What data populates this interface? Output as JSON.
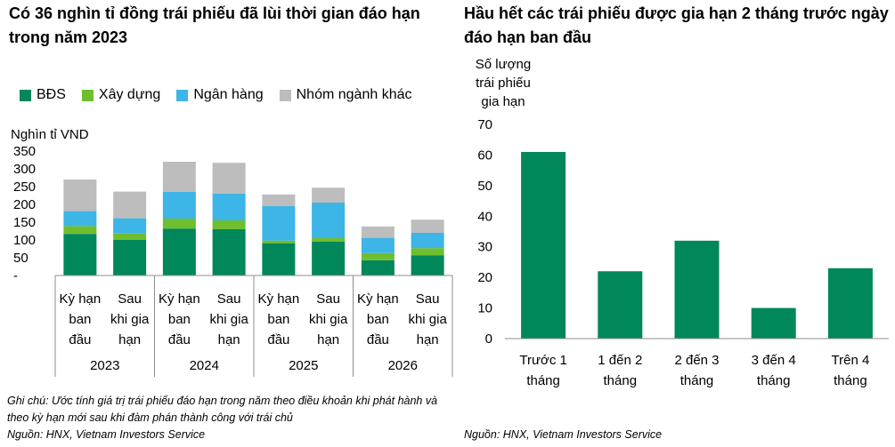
{
  "left": {
    "title": "Có 36 nghìn tỉ đồng trái phiếu đã lùi thời gian đáo hạn trong năm 2023",
    "note": "Ghi chú: Ước tính giá trị trái phiếu đáo hạn trong năm theo điều khoản khi phát hành và theo kỳ hạn mới sau khi đàm phán thành công với trái chủ",
    "source": "Nguồn: HNX, Vietnam Investors Service"
  },
  "right": {
    "title": "Hầu hết các trái phiếu được gia hạn 2 tháng trước ngày đáo hạn ban đầu",
    "source": "Nguồn: HNX, Vietnam Investors Service"
  },
  "chart_data": [
    {
      "type": "bar",
      "stacked": true,
      "ylabel": "Nghìn tỉ VND",
      "ylim": [
        0,
        350
      ],
      "yticks": [
        "-",
        "50",
        "100",
        "150",
        "200",
        "250",
        "300",
        "350"
      ],
      "legend_position": "top-left",
      "groups": [
        "2023",
        "2024",
        "2025",
        "2026"
      ],
      "categories": [
        "Kỳ hạn ban đầu",
        "Sau khi gia hạn",
        "Kỳ hạn ban đầu",
        "Sau khi gia hạn",
        "Kỳ hạn ban đầu",
        "Sau khi gia hạn",
        "Kỳ hạn ban đầu",
        "Sau khi gia hạn"
      ],
      "category_lines": [
        [
          "Kỳ hạn",
          "ban",
          "đầu"
        ],
        [
          "Sau",
          "khi gia",
          "hạn"
        ],
        [
          "Kỳ hạn",
          "ban",
          "đầu"
        ],
        [
          "Sau",
          "khi gia",
          "hạn"
        ],
        [
          "Kỳ hạn",
          "ban",
          "đầu"
        ],
        [
          "Sau",
          "khi gia",
          "hạn"
        ],
        [
          "Kỳ hạn",
          "ban",
          "đầu"
        ],
        [
          "Sau",
          "khi gia",
          "hạn"
        ]
      ],
      "series": [
        {
          "name": "BĐS",
          "color": "#00875a",
          "values": [
            117,
            100,
            132,
            130,
            90,
            95,
            43,
            57
          ]
        },
        {
          "name": "Xây dựng",
          "color": "#6fbe2e",
          "values": [
            22,
            18,
            28,
            25,
            8,
            10,
            20,
            20
          ]
        },
        {
          "name": "Ngân hàng",
          "color": "#3db5e6",
          "values": [
            42,
            43,
            75,
            75,
            97,
            100,
            43,
            43
          ]
        },
        {
          "name": "Nhóm ngành khác",
          "color": "#bdbdbd",
          "values": [
            89,
            75,
            85,
            87,
            33,
            42,
            32,
            37
          ]
        }
      ]
    },
    {
      "type": "bar",
      "ylabel": "Số lượng trái phiếu gia hạn",
      "ylabel_lines": [
        "Số lượng",
        "trái phiếu",
        "gia hạn"
      ],
      "ylim": [
        0,
        70
      ],
      "yticks": [
        "0",
        "10",
        "20",
        "30",
        "40",
        "50",
        "60",
        "70"
      ],
      "color": "#00875a",
      "categories": [
        "Trước 1 tháng",
        "1 đến 2 tháng",
        "2 đến 3 tháng",
        "3 đến 4 tháng",
        "Trên 4 tháng"
      ],
      "category_lines": [
        [
          "Trước 1",
          "tháng"
        ],
        [
          "1 đến 2",
          "tháng"
        ],
        [
          "2 đến 3",
          "tháng"
        ],
        [
          "3 đến 4",
          "tháng"
        ],
        [
          "Trên 4",
          "tháng"
        ]
      ],
      "values": [
        61,
        22,
        32,
        10,
        23
      ]
    }
  ]
}
